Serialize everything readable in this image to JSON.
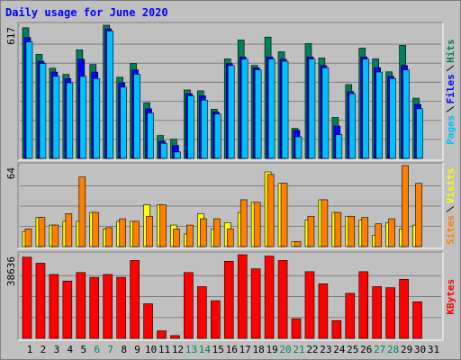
{
  "chart_data": [
    {
      "type": "bar",
      "title": "Daily usage for June 2020",
      "categories": [
        "1",
        "2",
        "3",
        "4",
        "5",
        "6",
        "7",
        "8",
        "9",
        "10",
        "11",
        "12",
        "13",
        "14",
        "15",
        "16",
        "17",
        "18",
        "19",
        "20",
        "21",
        "22",
        "23",
        "24",
        "25",
        "26",
        "27",
        "28",
        "29",
        "30",
        "31"
      ],
      "category_colors": [
        "#000000",
        "#000000",
        "#000000",
        "#000000",
        "#000000",
        "#00805c",
        "#00805c",
        "#000000",
        "#000000",
        "#000000",
        "#000000",
        "#000000",
        "#00805c",
        "#00805c",
        "#000000",
        "#000000",
        "#000000",
        "#000000",
        "#000000",
        "#00805c",
        "#00805c",
        "#000000",
        "#000000",
        "#000000",
        "#000000",
        "#000000",
        "#00805c",
        "#00805c",
        "#000000",
        "#000000",
        "#000000"
      ],
      "ylim": [
        0,
        617
      ],
      "yticks": [
        617
      ],
      "series": [
        {
          "name": "Hits",
          "color": "#00805c",
          "values": [
            605,
            482,
            418,
            389,
            503,
            435,
            617,
            376,
            440,
            258,
            106,
            89,
            317,
            313,
            228,
            461,
            549,
            431,
            562,
            494,
            139,
            532,
            465,
            190,
            342,
            511,
            461,
            401,
            524,
            279,
            null
          ]
        },
        {
          "name": "Files",
          "color": "#0000ff",
          "values": [
            560,
            450,
            400,
            370,
            460,
            400,
            600,
            350,
            410,
            230,
            80,
            60,
            300,
            290,
            215,
            440,
            470,
            420,
            470,
            460,
            130,
            470,
            430,
            150,
            310,
            470,
            420,
            380,
            430,
            250,
            null
          ]
        },
        {
          "name": "Pages",
          "color": "#00c0ff",
          "values": [
            540,
            440,
            380,
            350,
            380,
            370,
            590,
            330,
            390,
            210,
            70,
            30,
            290,
            270,
            205,
            430,
            460,
            410,
            460,
            450,
            100,
            460,
            420,
            110,
            300,
            460,
            400,
            370,
            410,
            230,
            null
          ]
        }
      ]
    },
    {
      "type": "bar",
      "ylim": [
        0,
        64
      ],
      "yticks": [
        64
      ],
      "series": [
        {
          "name": "Visits",
          "color": "#ffff00",
          "values": [
            12,
            23,
            17,
            20,
            20,
            27,
            14,
            20,
            20,
            33,
            33,
            17,
            10,
            26,
            14,
            19,
            27,
            35,
            59,
            50,
            4,
            21,
            37,
            27,
            24,
            21,
            9,
            19,
            14,
            17,
            null
          ]
        },
        {
          "name": "Sites",
          "color": "#ff8000",
          "values": [
            14,
            23,
            17,
            26,
            55,
            27,
            15,
            22,
            20,
            24,
            33,
            14,
            17,
            22,
            22,
            14,
            37,
            35,
            57,
            50,
            4,
            24,
            37,
            27,
            24,
            23,
            18,
            22,
            64,
            50,
            null
          ]
        }
      ]
    },
    {
      "type": "bar",
      "ylim": [
        0,
        38636
      ],
      "yticks": [
        38636
      ],
      "series": [
        {
          "name": "KBytes",
          "color": "#ff0000",
          "values": [
            37500,
            34700,
            29500,
            26500,
            30400,
            28200,
            29500,
            28200,
            36000,
            16000,
            3500,
            1300,
            30400,
            23900,
            17400,
            35600,
            38636,
            32100,
            38000,
            36000,
            9100,
            30800,
            25200,
            8200,
            20800,
            30800,
            23900,
            23400,
            27300,
            16900,
            null
          ]
        }
      ]
    }
  ]
}
